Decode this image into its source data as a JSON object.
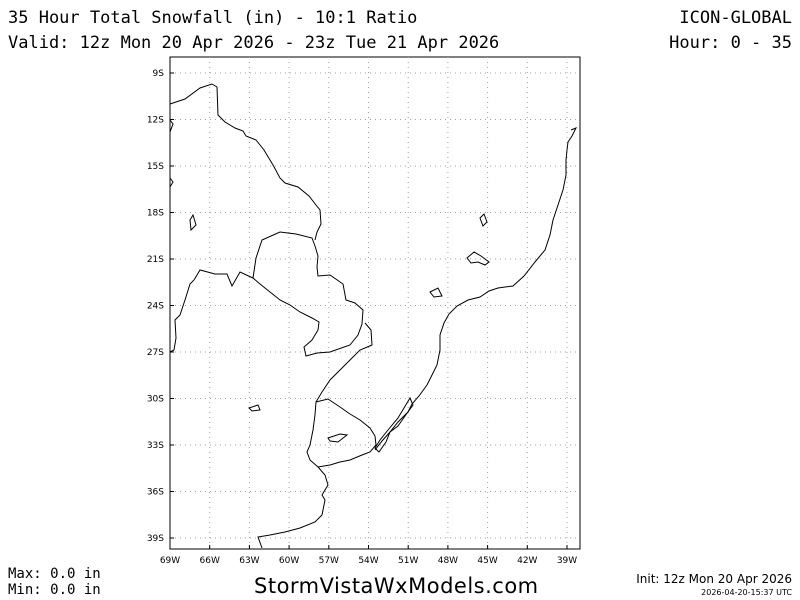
{
  "header": {
    "title": "35 Hour Total Snowfall (in) - 10:1 Ratio",
    "valid": "Valid: 12z Mon 20 Apr 2026 - 23z Tue 21 Apr 2026",
    "model": "ICON-GLOBAL",
    "hour": "Hour: 0 - 35"
  },
  "map": {
    "lon_ticks": [
      "69W",
      "66W",
      "63W",
      "60W",
      "57W",
      "54W",
      "51W",
      "48W",
      "45W",
      "42W",
      "39W"
    ],
    "lat_ticks": [
      "9S",
      "12S",
      "15S",
      "18S",
      "21S",
      "24S",
      "27S",
      "30S",
      "33S",
      "36S",
      "39S"
    ],
    "grid": true,
    "colors": {
      "border": "#000000",
      "grid": "#a0a0a0",
      "background": "#ffffff"
    }
  },
  "footer": {
    "max": "Max: 0.0 in",
    "min": "Min: 0.0 in",
    "site": "StormVistaWxModels.com",
    "init": "Init: 12z Mon 20 Apr 2026",
    "stamp": "2026-04-20-15:37 UTC"
  }
}
